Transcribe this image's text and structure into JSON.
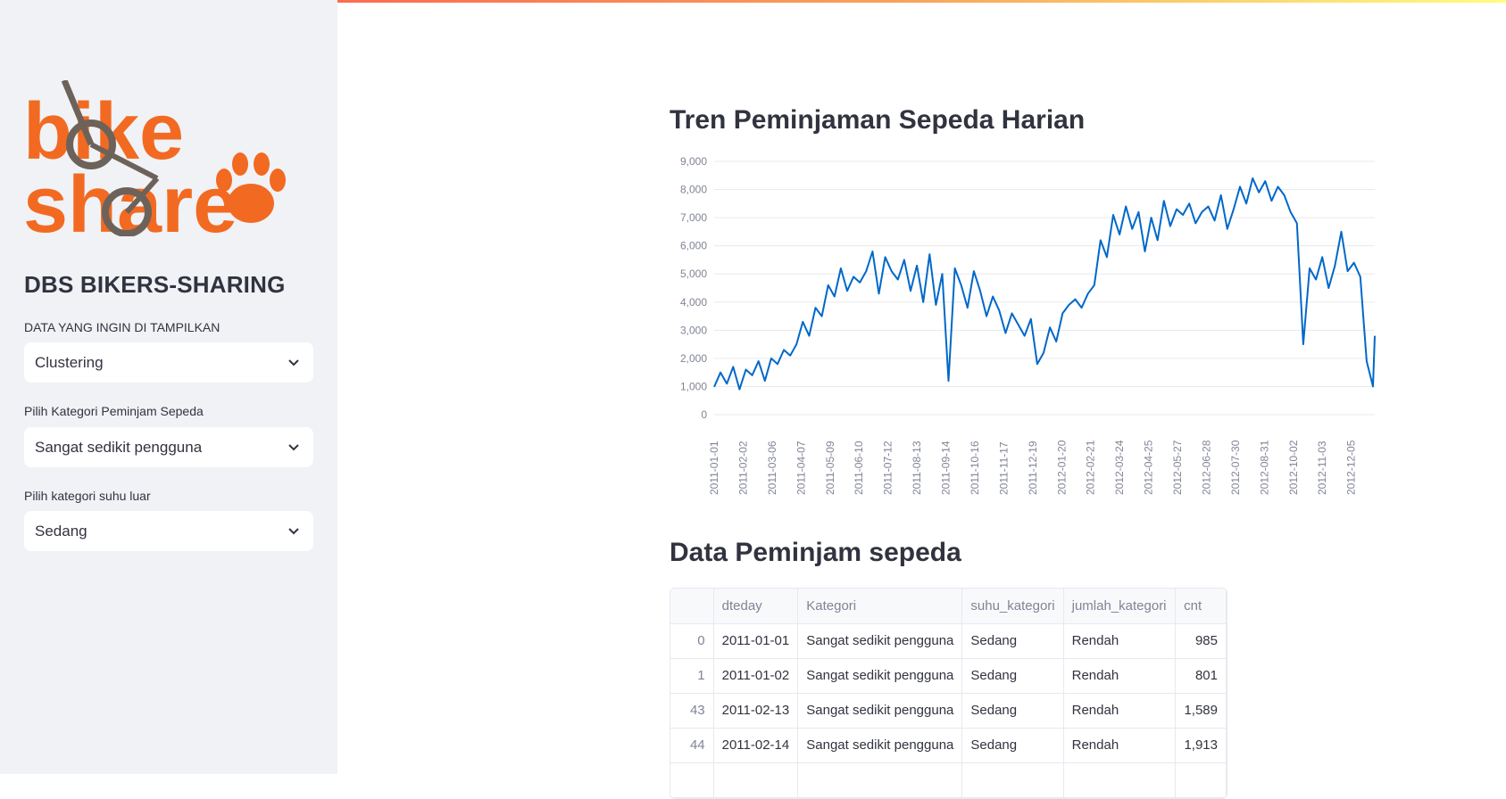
{
  "sidebar": {
    "logo_text": "bike share",
    "title": "DBS BIKERS-SHARING",
    "fields": [
      {
        "label": "DATA YANG INGIN DI TAMPILKAN",
        "value": "Clustering"
      },
      {
        "label": "Pilih Kategori Peminjam Sepeda",
        "value": "Sangat sedikit pengguna"
      },
      {
        "label": "Pilih kategori suhu luar",
        "value": "Sedang"
      }
    ]
  },
  "main": {
    "chart_title": "Tren Peminjaman Sepeda Harian",
    "table_title": "Data Peminjam sepeda"
  },
  "colors": {
    "line": "#0068c9",
    "sidebar_bg": "#f0f2f6",
    "accent": "#ff4b4b"
  },
  "chart_data": {
    "type": "line",
    "title": "Tren Peminjaman Sepeda Harian",
    "xlabel": "",
    "ylabel": "",
    "ylim": [
      0,
      9000
    ],
    "yticks": [
      "0",
      "1,000",
      "2,000",
      "3,000",
      "4,000",
      "5,000",
      "6,000",
      "7,000",
      "8,000",
      "9,000"
    ],
    "xticks": [
      "2011-01-01",
      "2011-02-02",
      "2011-03-06",
      "2011-04-07",
      "2011-05-09",
      "2011-06-10",
      "2011-07-12",
      "2011-08-13",
      "2011-09-14",
      "2011-10-16",
      "2011-11-17",
      "2011-12-19",
      "2012-01-20",
      "2012-02-21",
      "2012-03-24",
      "2012-04-25",
      "2012-05-27",
      "2012-06-28",
      "2012-07-30",
      "2012-08-31",
      "2012-10-02",
      "2012-11-03",
      "2012-12-05"
    ],
    "grid": true,
    "series": [
      {
        "x": [
          "2011-01-01",
          "2011-01-08",
          "2011-01-15",
          "2011-01-22",
          "2011-01-29",
          "2011-02-05",
          "2011-02-12",
          "2011-02-19",
          "2011-02-26",
          "2011-03-05",
          "2011-03-12",
          "2011-03-19",
          "2011-03-26",
          "2011-04-02",
          "2011-04-09",
          "2011-04-16",
          "2011-04-23",
          "2011-04-30",
          "2011-05-07",
          "2011-05-14",
          "2011-05-21",
          "2011-05-28",
          "2011-06-04",
          "2011-06-11",
          "2011-06-18",
          "2011-06-25",
          "2011-07-02",
          "2011-07-09",
          "2011-07-16",
          "2011-07-23",
          "2011-07-30",
          "2011-08-06",
          "2011-08-13",
          "2011-08-20",
          "2011-08-27",
          "2011-09-03",
          "2011-09-10",
          "2011-09-17",
          "2011-09-24",
          "2011-10-01",
          "2011-10-08",
          "2011-10-15",
          "2011-10-22",
          "2011-10-29",
          "2011-11-05",
          "2011-11-12",
          "2011-11-19",
          "2011-11-26",
          "2011-12-03",
          "2011-12-10",
          "2011-12-17",
          "2011-12-24",
          "2011-12-31",
          "2012-01-07",
          "2012-01-14",
          "2012-01-21",
          "2012-01-28",
          "2012-02-04",
          "2012-02-11",
          "2012-02-18",
          "2012-02-25",
          "2012-03-03",
          "2012-03-10",
          "2012-03-17",
          "2012-03-24",
          "2012-03-31",
          "2012-04-07",
          "2012-04-14",
          "2012-04-21",
          "2012-04-28",
          "2012-05-05",
          "2012-05-12",
          "2012-05-19",
          "2012-05-26",
          "2012-06-02",
          "2012-06-09",
          "2012-06-16",
          "2012-06-23",
          "2012-06-30",
          "2012-07-07",
          "2012-07-14",
          "2012-07-21",
          "2012-07-28",
          "2012-08-04",
          "2012-08-11",
          "2012-08-18",
          "2012-08-25",
          "2012-09-01",
          "2012-09-08",
          "2012-09-15",
          "2012-09-22",
          "2012-09-29",
          "2012-10-06",
          "2012-10-13",
          "2012-10-20",
          "2012-10-27",
          "2012-11-03",
          "2012-11-10",
          "2012-11-17",
          "2012-11-24",
          "2012-12-01",
          "2012-12-08",
          "2012-12-15",
          "2012-12-22",
          "2012-12-29",
          "2012-12-31"
        ],
        "values": [
          985,
          1500,
          1100,
          1700,
          900,
          1600,
          1400,
          1900,
          1200,
          2000,
          1800,
          2300,
          2100,
          2500,
          3300,
          2800,
          3800,
          3500,
          4600,
          4200,
          5200,
          4400,
          4900,
          4700,
          5100,
          5800,
          4300,
          5600,
          5100,
          4800,
          5500,
          4400,
          5300,
          4000,
          5700,
          3900,
          5000,
          1200,
          5200,
          4600,
          3800,
          5100,
          4400,
          3500,
          4200,
          3700,
          2900,
          3600,
          3200,
          2800,
          3400,
          1800,
          2200,
          3100,
          2600,
          3600,
          3900,
          4100,
          3800,
          4300,
          4600,
          6200,
          5600,
          7100,
          6400,
          7400,
          6600,
          7200,
          5800,
          7000,
          6200,
          7600,
          6700,
          7300,
          7100,
          7500,
          6800,
          7200,
          7400,
          6900,
          7800,
          6600,
          7300,
          8100,
          7500,
          8400,
          7900,
          8300,
          7600,
          8100,
          7800,
          7200,
          6800,
          2500,
          5200,
          4800,
          5600,
          4500,
          5300,
          6500,
          5100,
          5400,
          4900,
          1900,
          1000,
          2800
        ]
      }
    ]
  },
  "table": {
    "headers": [
      "",
      "dteday",
      "Kategori",
      "suhu_kategori",
      "jumlah_kategori",
      "cnt"
    ],
    "rows": [
      {
        "idx": "0",
        "dteday": "2011-01-01",
        "kategori": "Sangat sedikit pengguna",
        "suhu": "Sedang",
        "jumlah": "Rendah",
        "cnt": "985"
      },
      {
        "idx": "1",
        "dteday": "2011-01-02",
        "kategori": "Sangat sedikit pengguna",
        "suhu": "Sedang",
        "jumlah": "Rendah",
        "cnt": "801"
      },
      {
        "idx": "43",
        "dteday": "2011-02-13",
        "kategori": "Sangat sedikit pengguna",
        "suhu": "Sedang",
        "jumlah": "Rendah",
        "cnt": "1,589"
      },
      {
        "idx": "44",
        "dteday": "2011-02-14",
        "kategori": "Sangat sedikit pengguna",
        "suhu": "Sedang",
        "jumlah": "Rendah",
        "cnt": "1,913"
      }
    ]
  }
}
